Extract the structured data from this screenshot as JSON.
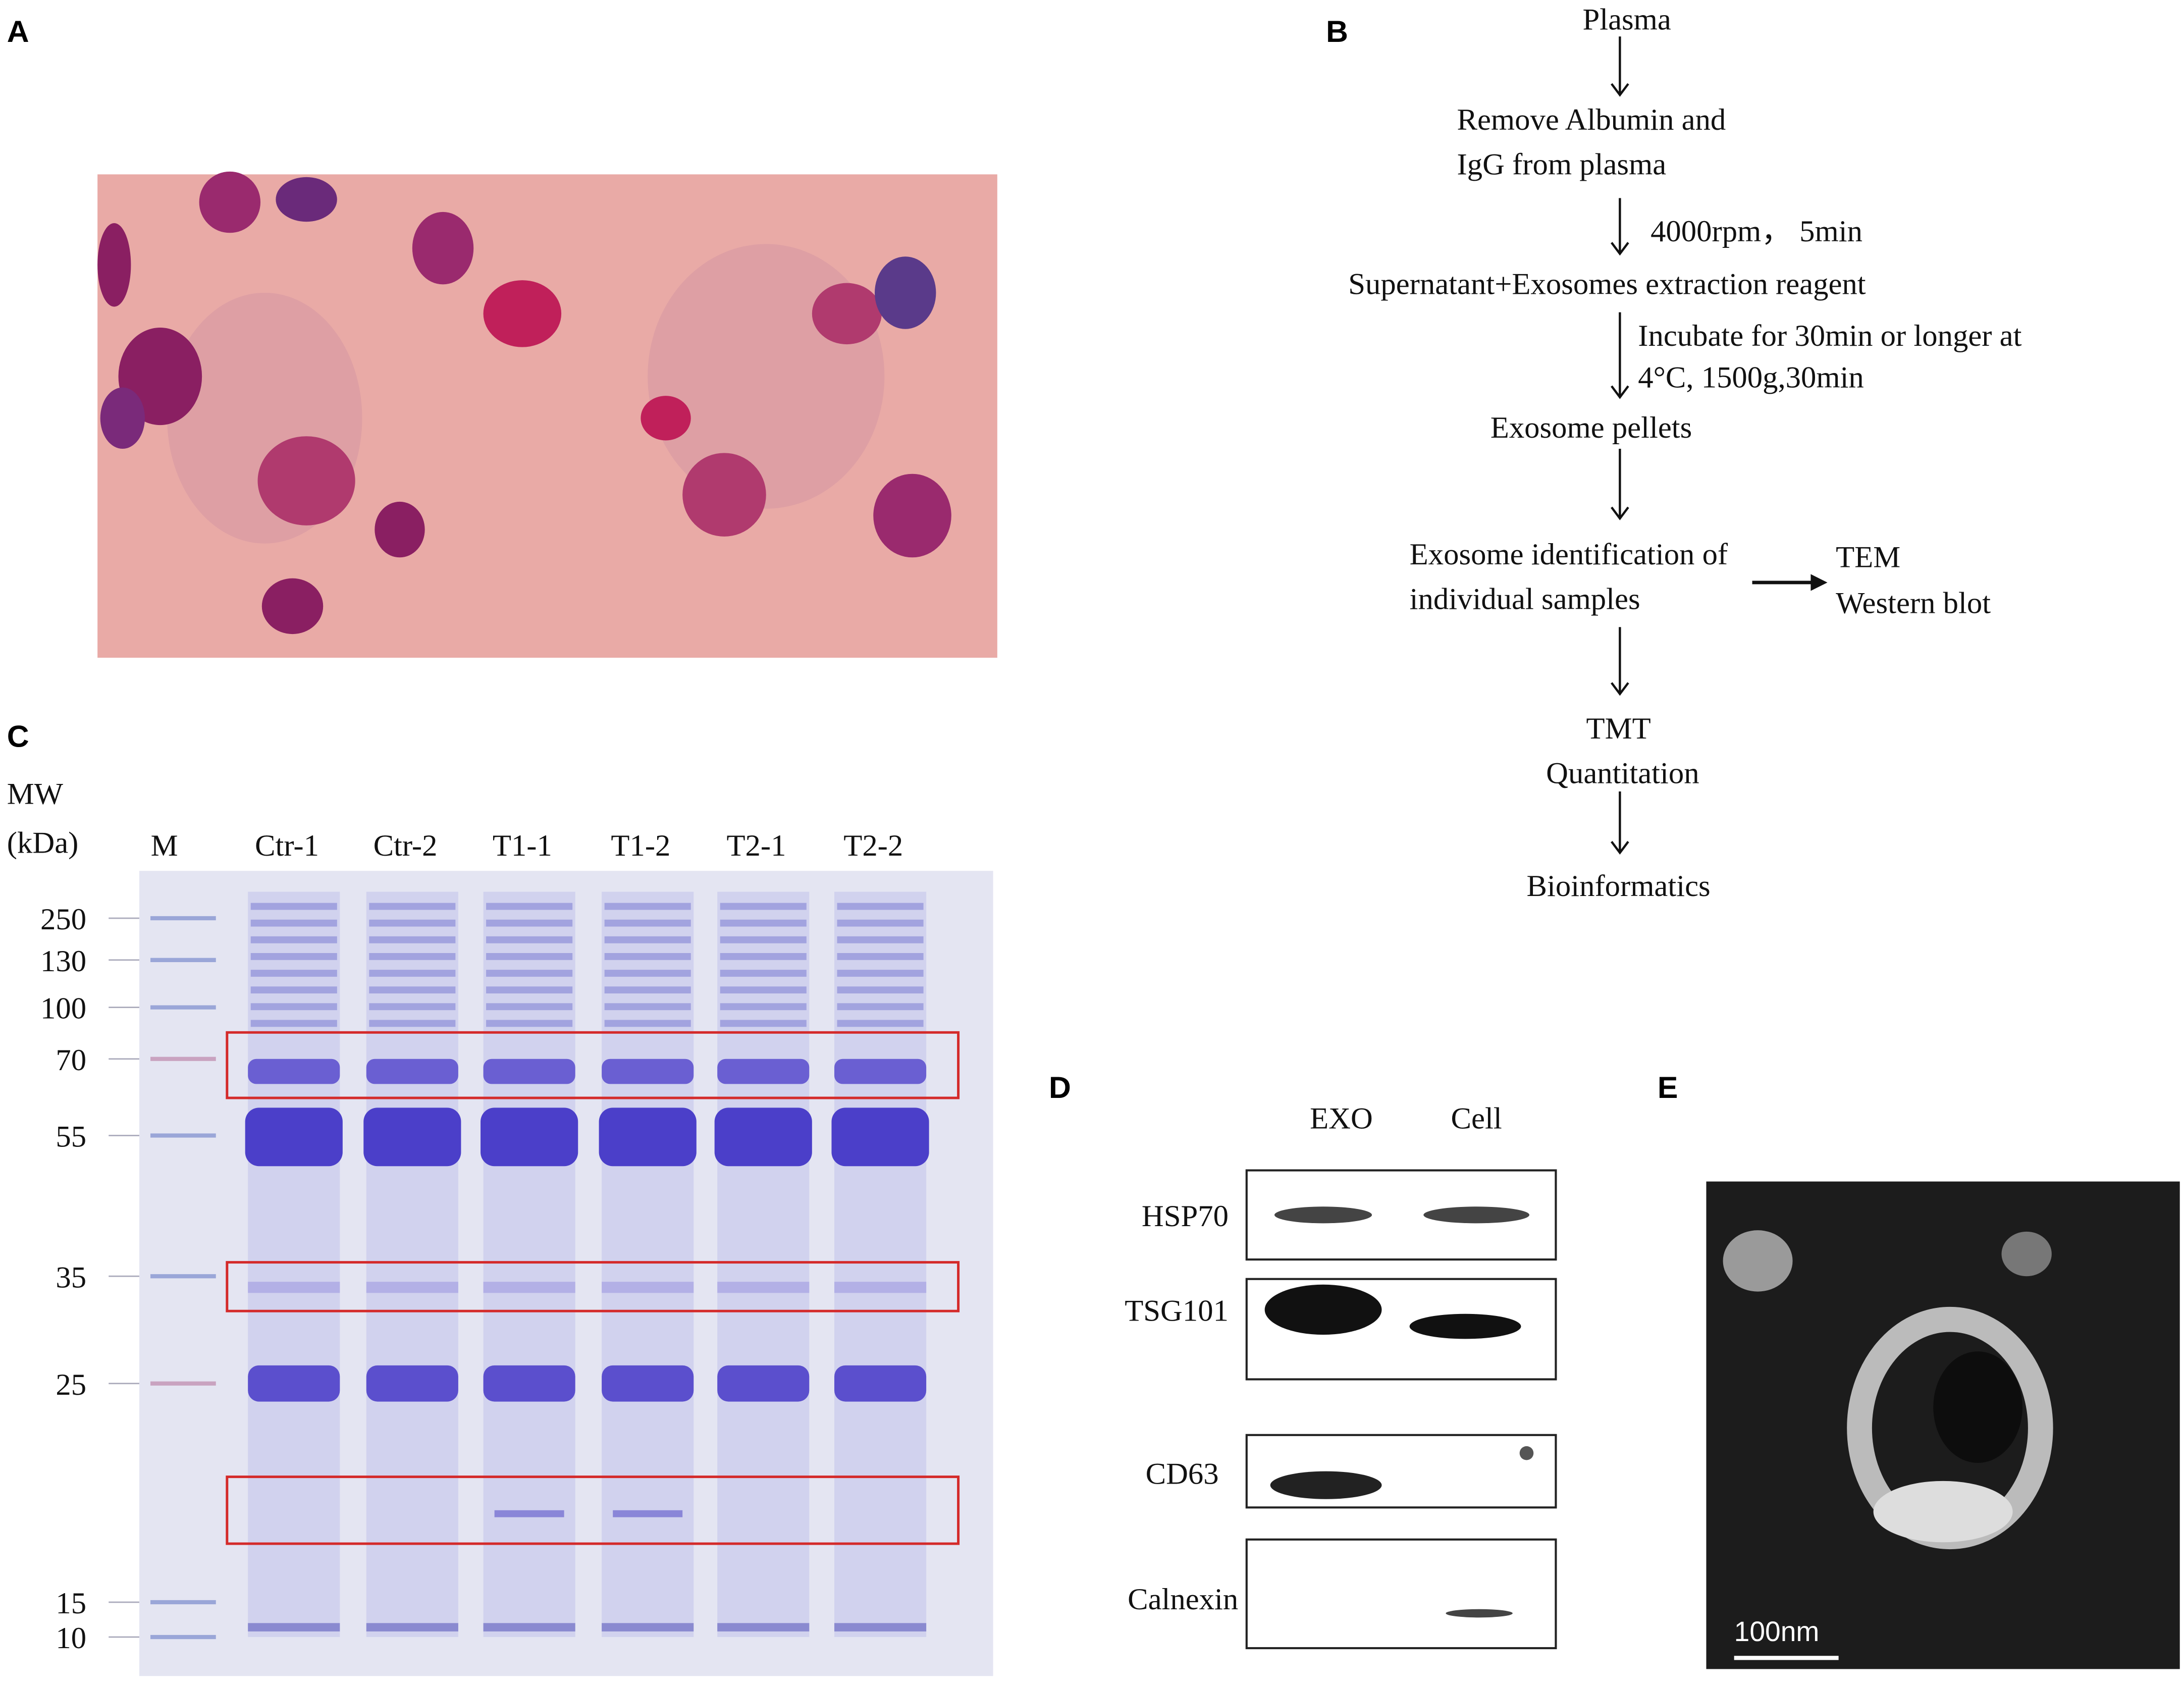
{
  "panels": {
    "a": {
      "label": "A"
    },
    "b": {
      "label": "B",
      "steps": [
        "Plasma",
        "Remove Albumin and",
        "IgG from plasma",
        "Supernatant+Exosomes extraction reagent",
        "Exosome pellets",
        "Exosome identification of",
        "individual samples",
        "TMT",
        "Quantitation",
        "Bioinformatics"
      ],
      "conditions": [
        "4000rpm， 5min",
        "Incubate for 30min or longer at",
        "4°C, 1500g,30min"
      ],
      "methods": [
        "TEM",
        "Western blot"
      ]
    },
    "c": {
      "label": "C",
      "axis_title": [
        "MW",
        "(kDa)"
      ],
      "lanes": [
        "M",
        "Ctr-1",
        "Ctr-2",
        "T1-1",
        "T1-2",
        "T2-1",
        "T2-2"
      ],
      "markers": [
        250,
        130,
        100,
        70,
        55,
        35,
        25,
        15,
        10
      ]
    },
    "d": {
      "label": "D",
      "columns": [
        "EXO",
        "Cell"
      ],
      "rows": [
        "HSP70",
        "TSG101",
        "CD63",
        "Calnexin"
      ]
    },
    "e": {
      "label": "E",
      "scale_bar": "100nm"
    }
  }
}
